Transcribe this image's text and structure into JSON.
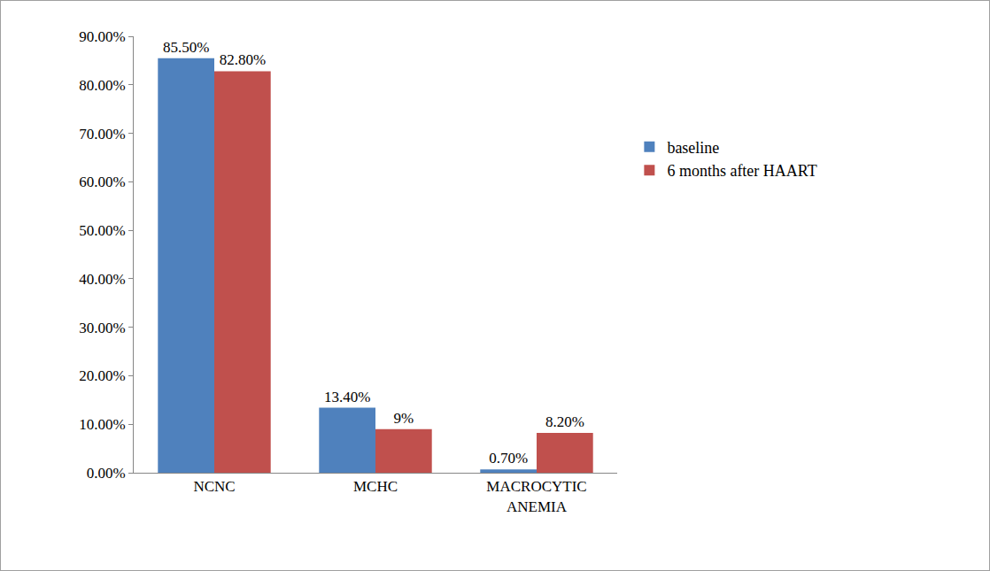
{
  "chart_data": {
    "type": "bar",
    "categories": [
      "NCNC",
      "MCHC",
      "MACROCYTIC\nANEMIA"
    ],
    "series": [
      {
        "name": "baseline",
        "color": "#4f81bd",
        "values": [
          85.5,
          13.4,
          0.7
        ],
        "value_labels": [
          "85.50%",
          "13.40%",
          "0.70%"
        ]
      },
      {
        "name": "6 months after HAART",
        "color": "#c0504d",
        "values": [
          82.8,
          9,
          8.2
        ],
        "value_labels": [
          "82.80%",
          "9%",
          "8.20%"
        ]
      }
    ],
    "ylim": [
      0,
      90
    ],
    "yticks": [
      {
        "value": 0,
        "label": "0.00%"
      },
      {
        "value": 10,
        "label": "10.00%"
      },
      {
        "value": 20,
        "label": "20.00%"
      },
      {
        "value": 30,
        "label": "30.00%"
      },
      {
        "value": 40,
        "label": "40.00%"
      },
      {
        "value": 50,
        "label": "50.00%"
      },
      {
        "value": 60,
        "label": "60.00%"
      },
      {
        "value": 70,
        "label": "70.00%"
      },
      {
        "value": 80,
        "label": "80.00%"
      },
      {
        "value": 90,
        "label": "90.00%"
      }
    ],
    "grid": false,
    "legend": "right",
    "data_labels": true
  }
}
